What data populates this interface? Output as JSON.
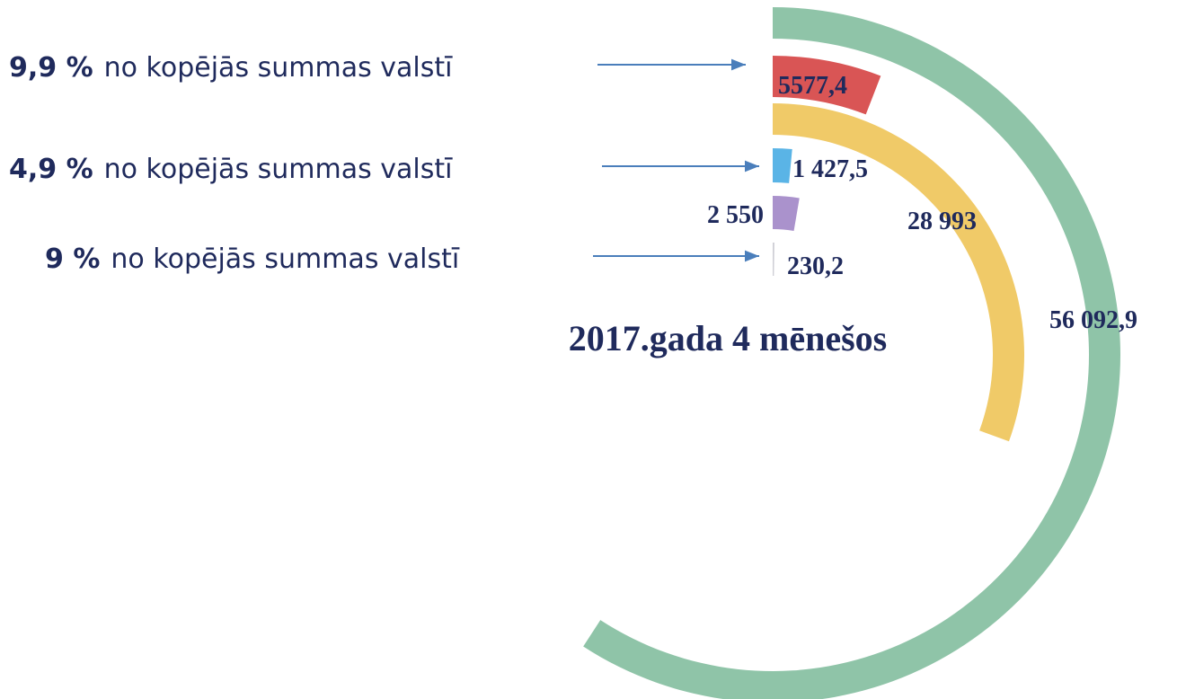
{
  "chart_data": {
    "type": "radial-bar",
    "title": "2017.gada 4 mēnešos",
    "values": [
      56092.9,
      5577.4,
      28993,
      1427.5,
      2550,
      230.2
    ],
    "value_labels": [
      "56 092,9",
      "5577,4",
      "28 993",
      "1 427,5",
      "2 550",
      "230,2"
    ],
    "colors": [
      "#8fc4a8",
      "#d95555",
      "#f0ca68",
      "#5ab4e6",
      "#aa92cc",
      "#cfcfd6"
    ],
    "ylim": [
      0,
      94800
    ],
    "annotations": [
      {
        "bold": "9,9 %",
        "text": "no kopējās summas valstī"
      },
      {
        "bold": "4,9 %",
        "text": "no kopējās summas valstī"
      },
      {
        "bold": "9 %",
        "text": "no kopējās summas valstī"
      }
    ]
  }
}
